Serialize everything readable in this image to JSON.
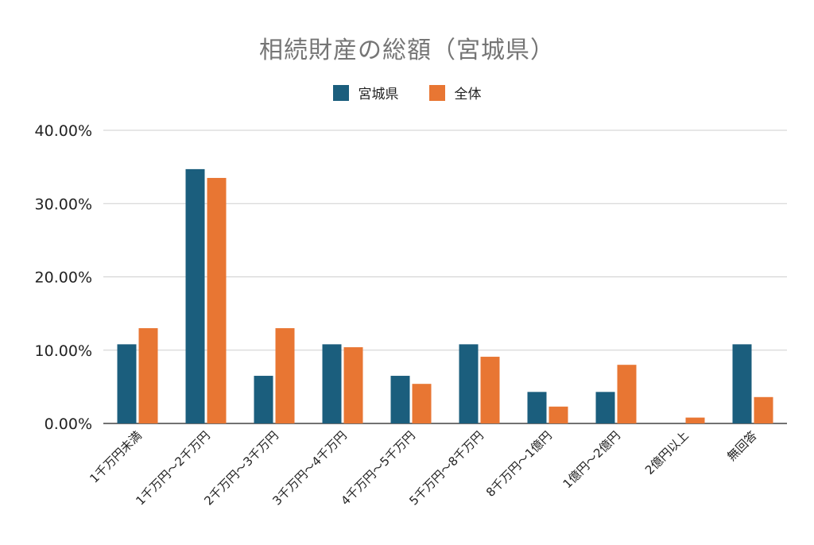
{
  "chart_data": {
    "type": "bar",
    "title": "相続財産の総額（宮城県）",
    "categories": [
      "1千万円未満",
      "1千万円～2千万円",
      "2千万円～3千万円",
      "3千万円～4千万円",
      "4千万円～5千万円",
      "5千万円～8千万円",
      "8千万円～1億円",
      "1億円～2億円",
      "2億円以上",
      "無回答"
    ],
    "series": [
      {
        "name": "宮城県",
        "color": "#1b5e7d",
        "values": [
          10.8,
          34.7,
          6.5,
          10.8,
          6.5,
          10.8,
          4.3,
          4.3,
          0,
          10.8
        ]
      },
      {
        "name": "全体",
        "color": "#e87633",
        "values": [
          13.0,
          33.5,
          13.0,
          10.4,
          5.4,
          9.1,
          2.3,
          8.0,
          0.8,
          3.6
        ]
      }
    ],
    "yticks": [
      "0.00%",
      "10.00%",
      "20.00%",
      "30.00%",
      "40.00%"
    ],
    "ylim": [
      0,
      40
    ],
    "grid": true,
    "legend_position": "top-center"
  }
}
